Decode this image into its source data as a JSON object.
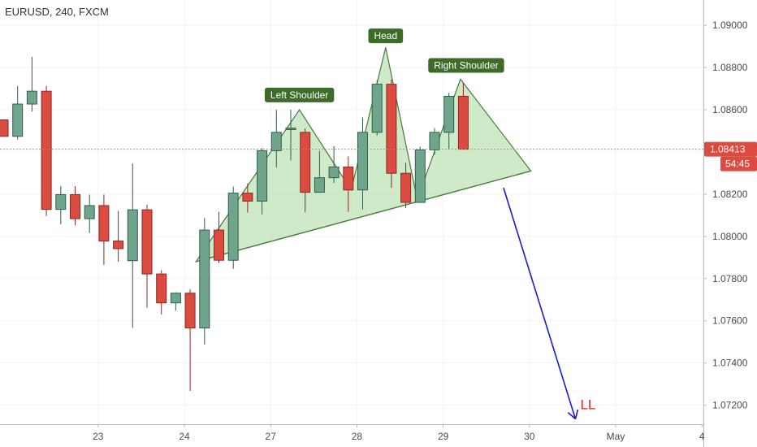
{
  "header": {
    "symbol": "EURUSD, 240, FXCM"
  },
  "colors": {
    "up": "#6ea58c",
    "up_border": "#2f5f45",
    "down": "#dc4b40",
    "down_border": "#8a2a22",
    "annotation_bg": "#3d6b2a",
    "pattern_fill": "#bfe3b5",
    "pattern_line": "#4a7a3c",
    "projection": "#1a1ad6",
    "price_line": "#e57373",
    "ll": "#e0241b"
  },
  "chart_data": {
    "type": "candlestick",
    "y_axis": {
      "min": 1.0711,
      "max": 1.0912,
      "ticks": [
        "1.09000",
        "1.08800",
        "1.08600",
        "1.08400",
        "1.08200",
        "1.08000",
        "1.07800",
        "1.07600",
        "1.07400",
        "1.07200"
      ]
    },
    "x_axis": {
      "labels": [
        {
          "label": "23",
          "bar": 6.6
        },
        {
          "label": "24",
          "bar": 12.6
        },
        {
          "label": "27",
          "bar": 18.6
        },
        {
          "label": "28",
          "bar": 24.6
        },
        {
          "label": "29",
          "bar": 30.6
        },
        {
          "label": "30",
          "bar": 36.6
        },
        {
          "label": "May",
          "bar": 42.6
        },
        {
          "label": "4",
          "bar": 48.6
        }
      ]
    },
    "candles": [
      {
        "o": 1.08552,
        "h": 1.08552,
        "l": 1.08474,
        "c": 1.08474
      },
      {
        "o": 1.08474,
        "h": 1.08713,
        "l": 1.08459,
        "c": 1.08627
      },
      {
        "o": 1.08627,
        "h": 1.08851,
        "l": 1.08591,
        "c": 1.08688
      },
      {
        "o": 1.08688,
        "h": 1.08713,
        "l": 1.08096,
        "c": 1.08128
      },
      {
        "o": 1.08128,
        "h": 1.08238,
        "l": 1.08058,
        "c": 1.08198
      },
      {
        "o": 1.08198,
        "h": 1.08238,
        "l": 1.08053,
        "c": 1.08084
      },
      {
        "o": 1.08084,
        "h": 1.08198,
        "l": 1.08015,
        "c": 1.08146
      },
      {
        "o": 1.08146,
        "h": 1.08198,
        "l": 1.07865,
        "c": 1.07978
      },
      {
        "o": 1.07978,
        "h": 1.08121,
        "l": 1.0788,
        "c": 1.07942
      },
      {
        "o": 1.07885,
        "h": 1.08345,
        "l": 1.07567,
        "c": 1.08126
      },
      {
        "o": 1.08126,
        "h": 1.0815,
        "l": 1.07662,
        "c": 1.07822
      },
      {
        "o": 1.07822,
        "h": 1.0784,
        "l": 1.0763,
        "c": 1.07685
      },
      {
        "o": 1.07685,
        "h": 1.07735,
        "l": 1.07648,
        "c": 1.07731
      },
      {
        "o": 1.07731,
        "h": 1.0775,
        "l": 1.07268,
        "c": 1.07566
      },
      {
        "o": 1.07566,
        "h": 1.08087,
        "l": 1.07488,
        "c": 1.0803
      },
      {
        "o": 1.0803,
        "h": 1.08116,
        "l": 1.07874,
        "c": 1.07887
      },
      {
        "o": 1.07887,
        "h": 1.08236,
        "l": 1.07846,
        "c": 1.08205
      },
      {
        "o": 1.08205,
        "h": 1.08251,
        "l": 1.08113,
        "c": 1.08167
      },
      {
        "o": 1.08167,
        "h": 1.08418,
        "l": 1.08105,
        "c": 1.08406
      },
      {
        "o": 1.08406,
        "h": 1.086,
        "l": 1.08327,
        "c": 1.08493
      },
      {
        "o": 1.08506,
        "h": 1.086,
        "l": 1.0836,
        "c": 1.08513
      },
      {
        "o": 1.08493,
        "h": 1.08512,
        "l": 1.08114,
        "c": 1.08209
      },
      {
        "o": 1.08209,
        "h": 1.08405,
        "l": 1.08214,
        "c": 1.08278
      },
      {
        "o": 1.08278,
        "h": 1.08428,
        "l": 1.08253,
        "c": 1.08329
      },
      {
        "o": 1.08329,
        "h": 1.08379,
        "l": 1.08116,
        "c": 1.0822
      },
      {
        "o": 1.0822,
        "h": 1.08563,
        "l": 1.08128,
        "c": 1.08493
      },
      {
        "o": 1.08493,
        "h": 1.0874,
        "l": 1.08478,
        "c": 1.08721
      },
      {
        "o": 1.08721,
        "h": 1.08744,
        "l": 1.0823,
        "c": 1.08299
      },
      {
        "o": 1.08299,
        "h": 1.08349,
        "l": 1.08134,
        "c": 1.08161
      },
      {
        "o": 1.08161,
        "h": 1.08425,
        "l": 1.08175,
        "c": 1.0841
      },
      {
        "o": 1.0841,
        "h": 1.08513,
        "l": 1.08387,
        "c": 1.08493
      },
      {
        "o": 1.08493,
        "h": 1.0868,
        "l": 1.08412,
        "c": 1.08664
      },
      {
        "o": 1.08664,
        "h": 1.08727,
        "l": 1.08413,
        "c": 1.08413
      }
    ],
    "last_price": {
      "value": 1.08413,
      "label": "1.08413",
      "countdown": "54:45"
    },
    "annotations": [
      {
        "text": "Left Shoulder",
        "bar": 20.6,
        "price": 1.0867
      },
      {
        "text": "Head",
        "bar": 26.6,
        "price": 1.0895
      },
      {
        "text": "Right Shoulder",
        "bar": 32.2,
        "price": 1.0881
      }
    ],
    "projection_label": "LL",
    "pattern": {
      "neckline": [
        [
          13.4,
          1.0788
        ],
        [
          36.7,
          1.0831
        ]
      ],
      "outline": [
        [
          13.4,
          1.0788
        ],
        [
          20.6,
          1.086
        ],
        [
          24.2,
          1.0822
        ],
        [
          26.6,
          1.08895
        ],
        [
          28.8,
          1.08175
        ],
        [
          31.8,
          1.08745
        ],
        [
          36.7,
          1.0831
        ]
      ]
    },
    "projection": {
      "from": [
        34.8,
        1.0823
      ],
      "to": [
        39.8,
        1.07135
      ]
    }
  }
}
